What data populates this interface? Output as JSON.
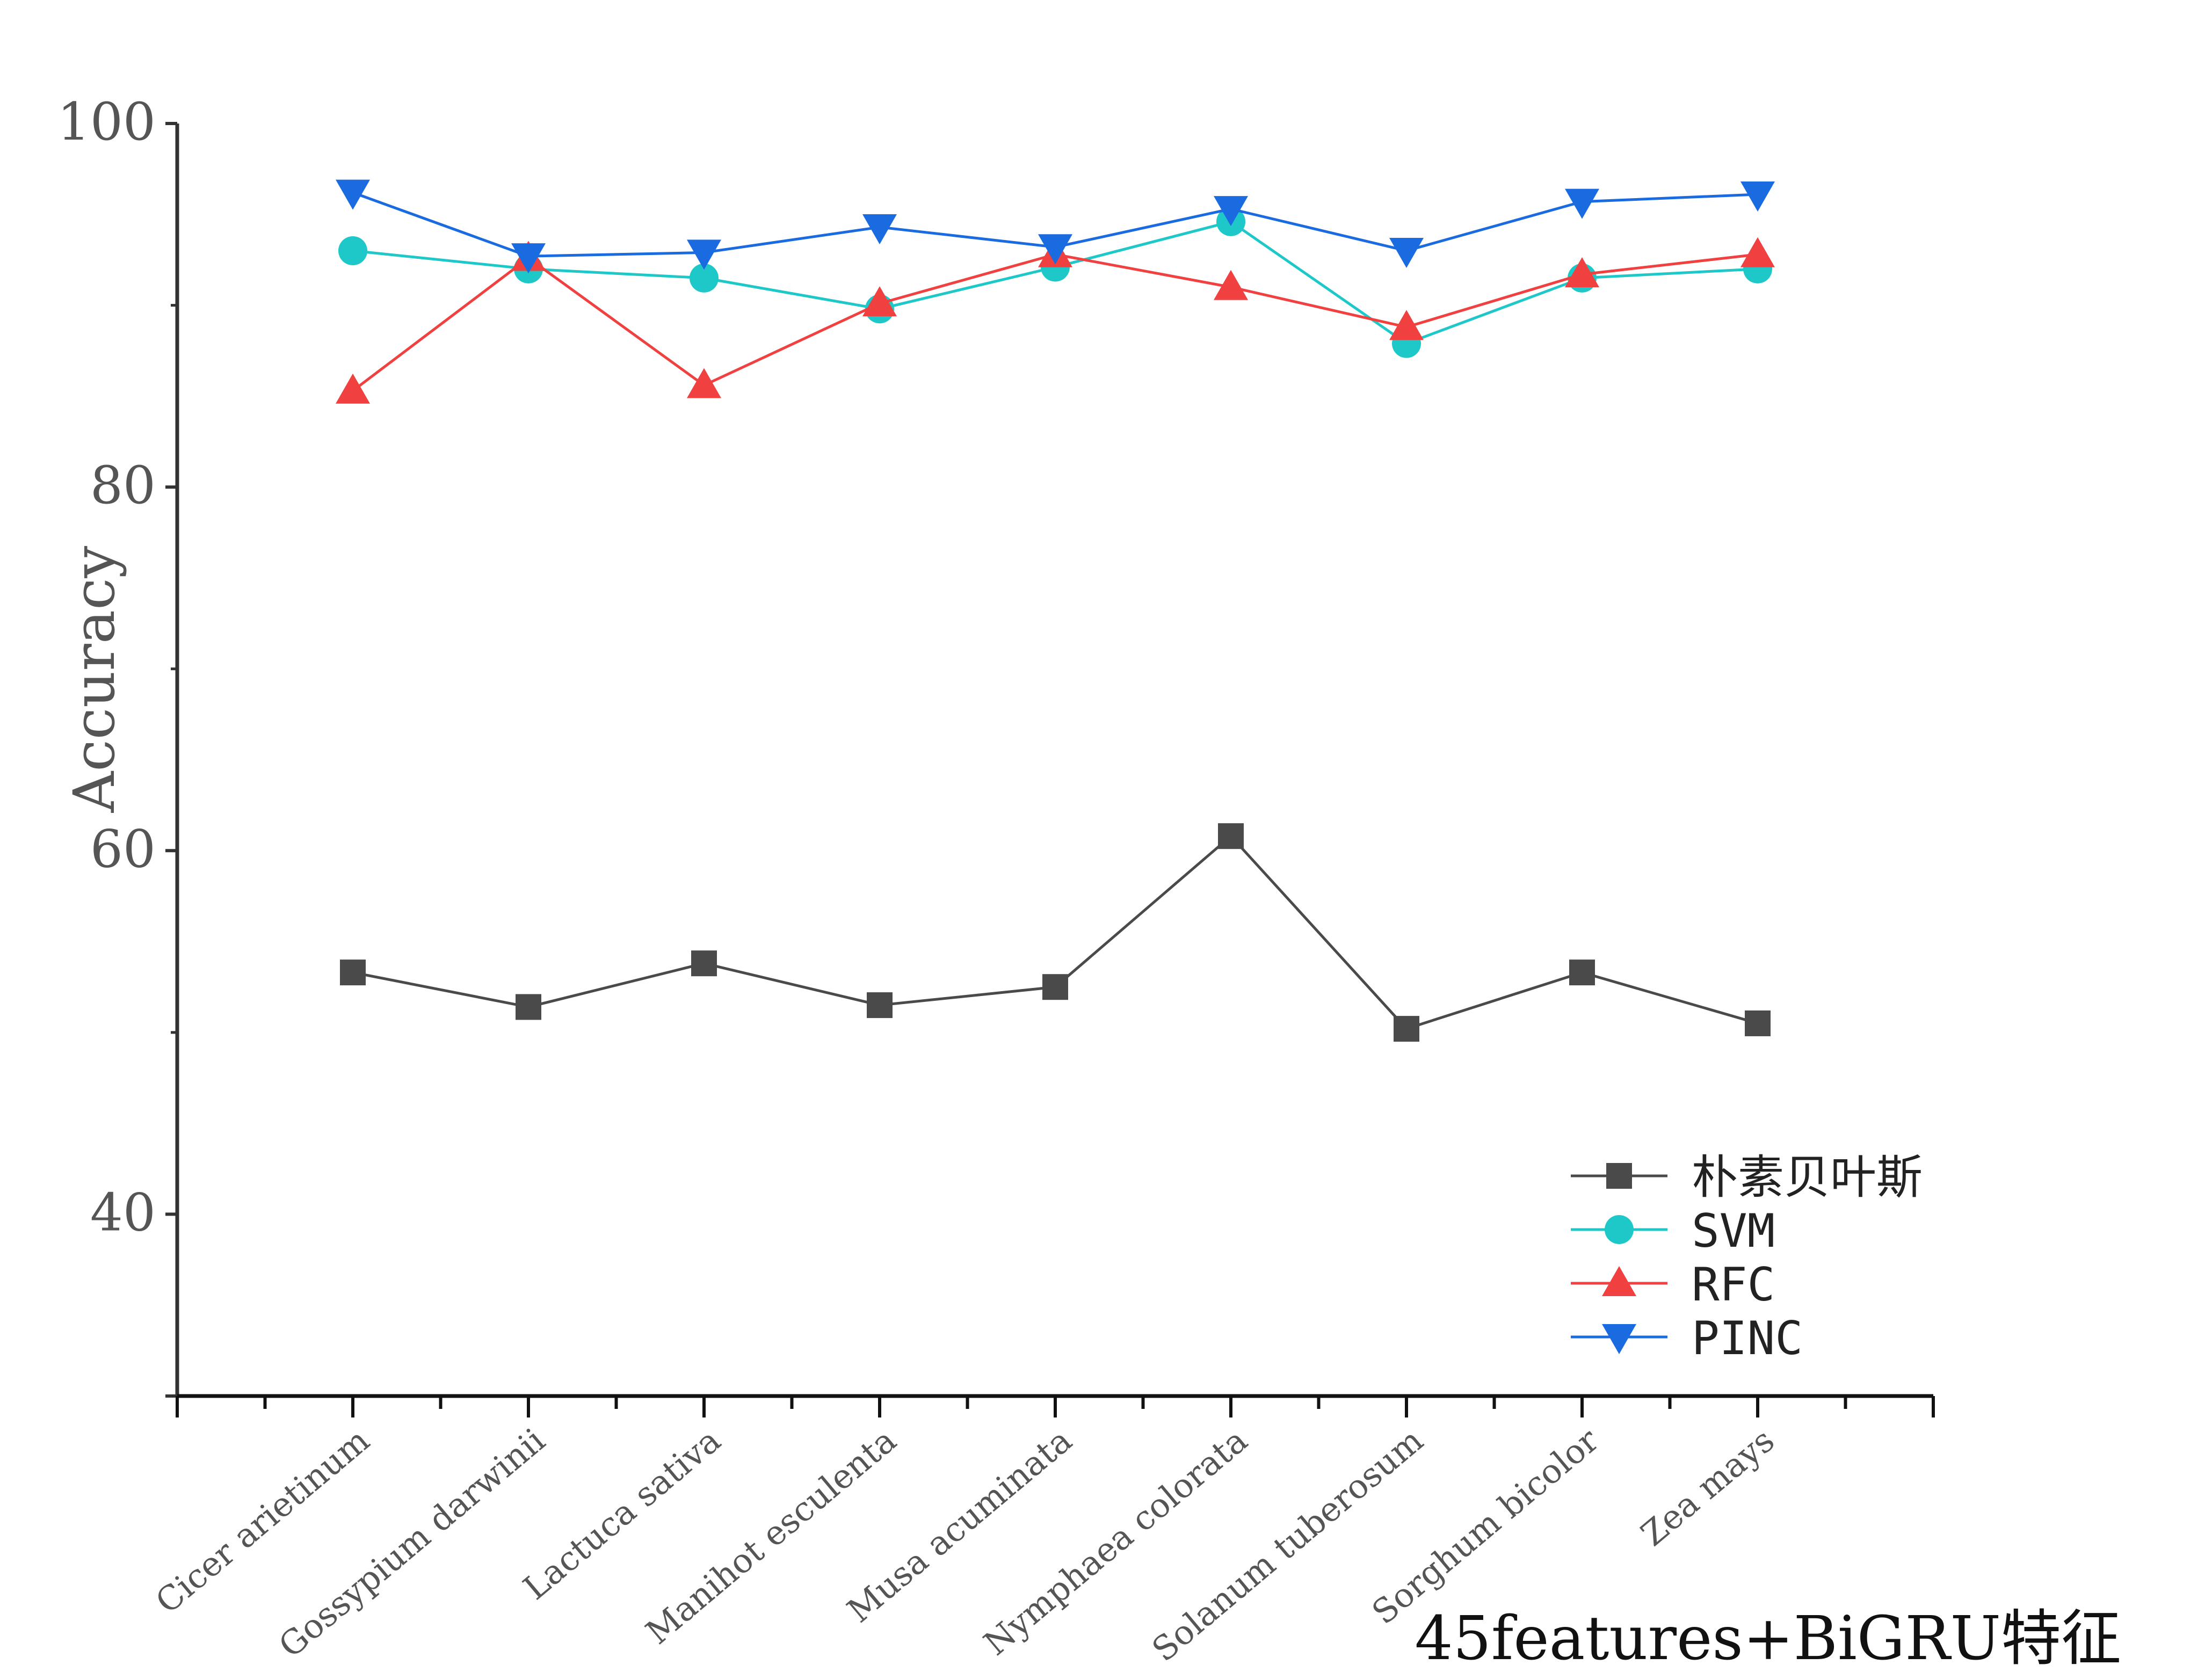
{
  "chart_data": {
    "type": "line",
    "title": "",
    "xlabel": "",
    "ylabel": "Accuracy",
    "ylim": [
      30,
      100
    ],
    "y_ticks": [
      40,
      60,
      80,
      100
    ],
    "grid": false,
    "legend_position": "bottom-right",
    "caption": "45features+BiGRU特征",
    "categories": [
      "Cicer arietinum",
      "Gossypium darwinii",
      "Lactuca sativa",
      "Manihot esculenta",
      "Musa acuminata",
      "Nymphaea colorata",
      "Solanum tuberosum",
      "Sorghum bicolor",
      "Zea mays"
    ],
    "series": [
      {
        "name": "朴素贝叶斯",
        "marker": "square",
        "color": "#4a4a4a",
        "values": [
          53.3,
          51.4,
          53.8,
          51.5,
          52.5,
          60.8,
          50.2,
          53.3,
          50.5
        ]
      },
      {
        "name": "SVM",
        "marker": "circle",
        "color": "#1ec8c8",
        "values": [
          93.0,
          92.0,
          91.5,
          89.8,
          92.1,
          94.6,
          87.9,
          91.5,
          92.0
        ]
      },
      {
        "name": "RFC",
        "marker": "triangle-up",
        "color": "#f04040",
        "values": [
          85.3,
          92.6,
          85.6,
          90.1,
          92.8,
          91.0,
          88.8,
          91.7,
          92.8
        ]
      },
      {
        "name": "PINC",
        "marker": "triangle-down",
        "color": "#1a6ae0",
        "values": [
          96.2,
          92.7,
          92.9,
          94.3,
          93.2,
          95.3,
          93.0,
          95.7,
          96.1
        ]
      }
    ]
  }
}
